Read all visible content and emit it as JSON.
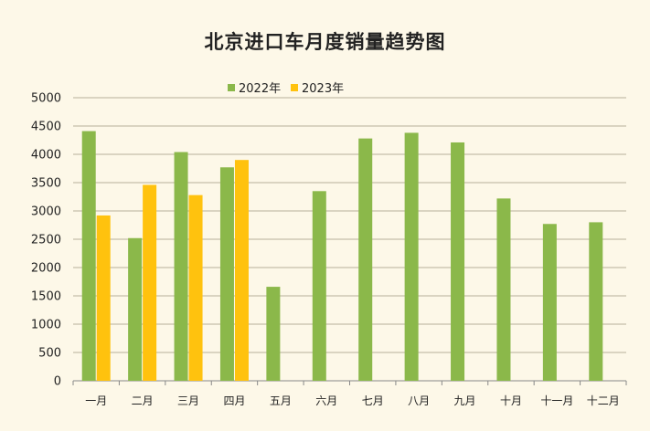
{
  "chart_data": {
    "type": "bar",
    "title": "北京进口车月度销量趋势图",
    "categories": [
      "一月",
      "二月",
      "三月",
      "四月",
      "五月",
      "六月",
      "七月",
      "八月",
      "九月",
      "十月",
      "十一月",
      "十二月"
    ],
    "series": [
      {
        "name": "2022年",
        "color": "#8bb84a",
        "values": [
          4410,
          2520,
          4040,
          3770,
          1660,
          3350,
          4280,
          4380,
          4210,
          3220,
          2770,
          2800
        ]
      },
      {
        "name": "2023年",
        "color": "#ffc20e",
        "values": [
          2920,
          3460,
          3280,
          3900,
          null,
          null,
          null,
          null,
          null,
          null,
          null,
          null
        ]
      }
    ],
    "y_ticks": [
      "0",
      "500",
      "1000",
      "1500",
      "2000",
      "2500",
      "3000",
      "3500",
      "4000",
      "4500",
      "5000"
    ],
    "ylim": [
      0,
      5000
    ],
    "xlabel": "",
    "ylabel": "",
    "grid": true,
    "legend": "top-center"
  }
}
